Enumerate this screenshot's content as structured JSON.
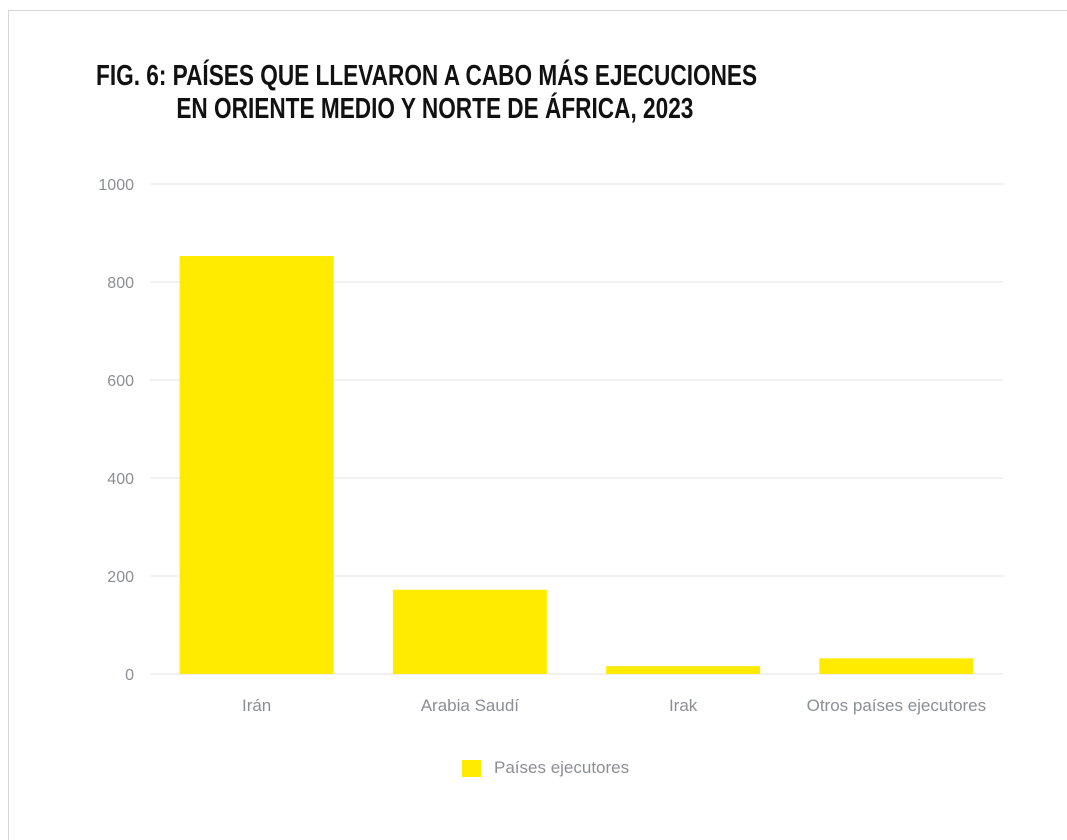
{
  "title": {
    "line1": "FIG. 6: PAÍSES QUE LLEVARON A CABO MÁS EJECUCIONES",
    "line2": "EN ORIENTE MEDIO Y NORTE DE ÁFRICA, 2023"
  },
  "legend": {
    "label": "Países ejecutores"
  },
  "colors": {
    "bar": "#ffeb00",
    "grid": "#e3e3e3",
    "tick_text": "#8a8f96"
  },
  "chart_data": {
    "type": "bar",
    "title": "FIG. 6: PAÍSES QUE LLEVARON A CABO MÁS EJECUCIONES EN ORIENTE MEDIO Y NORTE DE ÁFRICA, 2023",
    "categories": [
      "Irán",
      "Arabia Saudí",
      "Irak",
      "Otros países ejecutores"
    ],
    "series": [
      {
        "name": "Países ejecutores",
        "values": [
          853,
          172,
          16,
          32
        ]
      }
    ],
    "yticks": [
      0,
      200,
      400,
      600,
      800,
      1000
    ],
    "ylim": [
      0,
      1000
    ],
    "xlabel": "",
    "ylabel": "",
    "grid": true,
    "legend_position": "bottom-center"
  }
}
